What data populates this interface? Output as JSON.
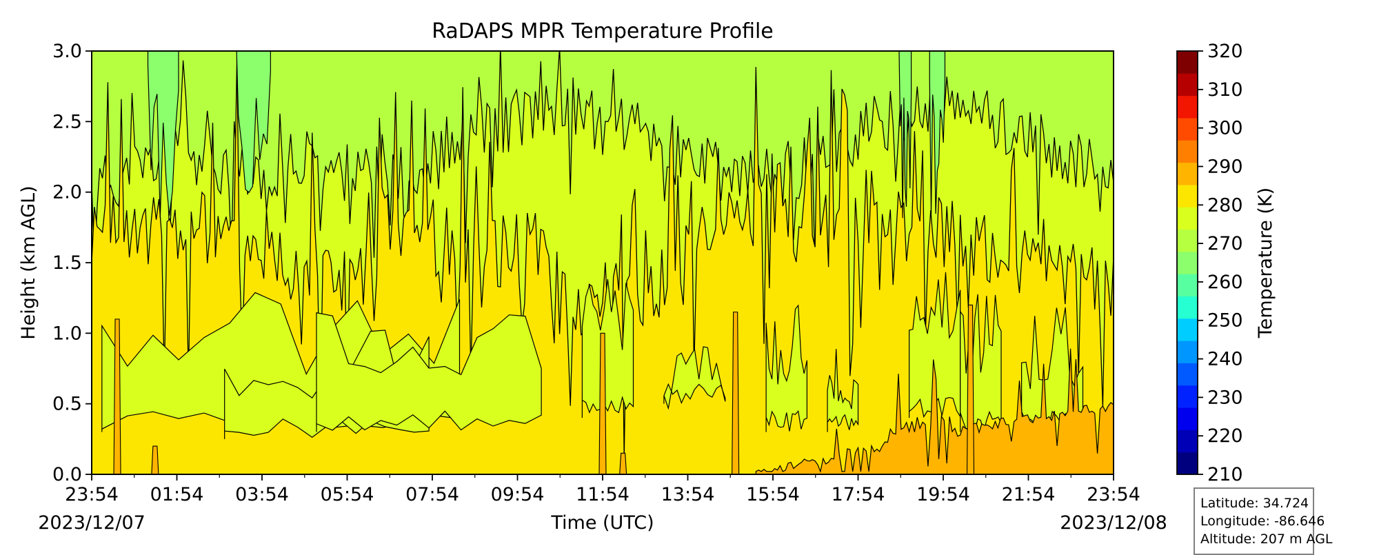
{
  "chart_data": {
    "type": "heatmap",
    "title": "RaDAPS MPR Temperature Profile",
    "xlabel": "Time (UTC)",
    "ylabel": "Height (km AGL)",
    "x_ticks": [
      "23:54",
      "01:54",
      "03:54",
      "05:54",
      "07:54",
      "09:54",
      "11:54",
      "13:54",
      "15:54",
      "17:54",
      "19:54",
      "21:54",
      "23:54"
    ],
    "x_start_date": "2023/12/07",
    "x_end_date": "2023/12/08",
    "y_ticks": [
      "0.0",
      "0.5",
      "1.0",
      "1.5",
      "2.0",
      "2.5",
      "3.0"
    ],
    "ylim": [
      0,
      3
    ],
    "colorbar": {
      "label": "Temperature (K)",
      "min": 210,
      "max": 320,
      "step": 5,
      "ticks": [
        "210",
        "220",
        "230",
        "240",
        "250",
        "260",
        "270",
        "280",
        "290",
        "300",
        "310",
        "320"
      ],
      "colors": [
        "#00007f",
        "#0000b6",
        "#0000ee",
        "#0022ff",
        "#005aff",
        "#0096ff",
        "#00cdff",
        "#25ffd1",
        "#58ffa0",
        "#8bff6c",
        "#b6ff40",
        "#d8ff1e",
        "#fce600",
        "#ffb400",
        "#ff8000",
        "#ff4b00",
        "#f21500",
        "#b60000",
        "#7f0000"
      ]
    },
    "regions": [
      {
        "level": "285-290 K",
        "color": "#ffb400",
        "extent": "surface to ~0.5 km, 15:30-23:54 UTC; isolated columns near 00:20, 00:54, 11:30, 13:54"
      },
      {
        "level": "280-285 K",
        "color": "#fce600",
        "extent": "surface to ~1.5-2.0 km for most of the period"
      },
      {
        "level": "275-280 K",
        "color": "#d8ff1e",
        "extent": "~1.5-2.5 km"
      },
      {
        "level": "270-275 K",
        "color": "#b6ff40",
        "extent": "above ~2.5 km"
      },
      {
        "level": "260-270 K",
        "color": "#8bff6c",
        "extent": "upper levels, 00:30-04:00 UTC and near 19:54 UTC"
      }
    ]
  },
  "info": {
    "latitude": "Latitude: 34.724",
    "longitude": "Longitude: -86.646",
    "altitude": "Altitude: 207 m AGL"
  }
}
